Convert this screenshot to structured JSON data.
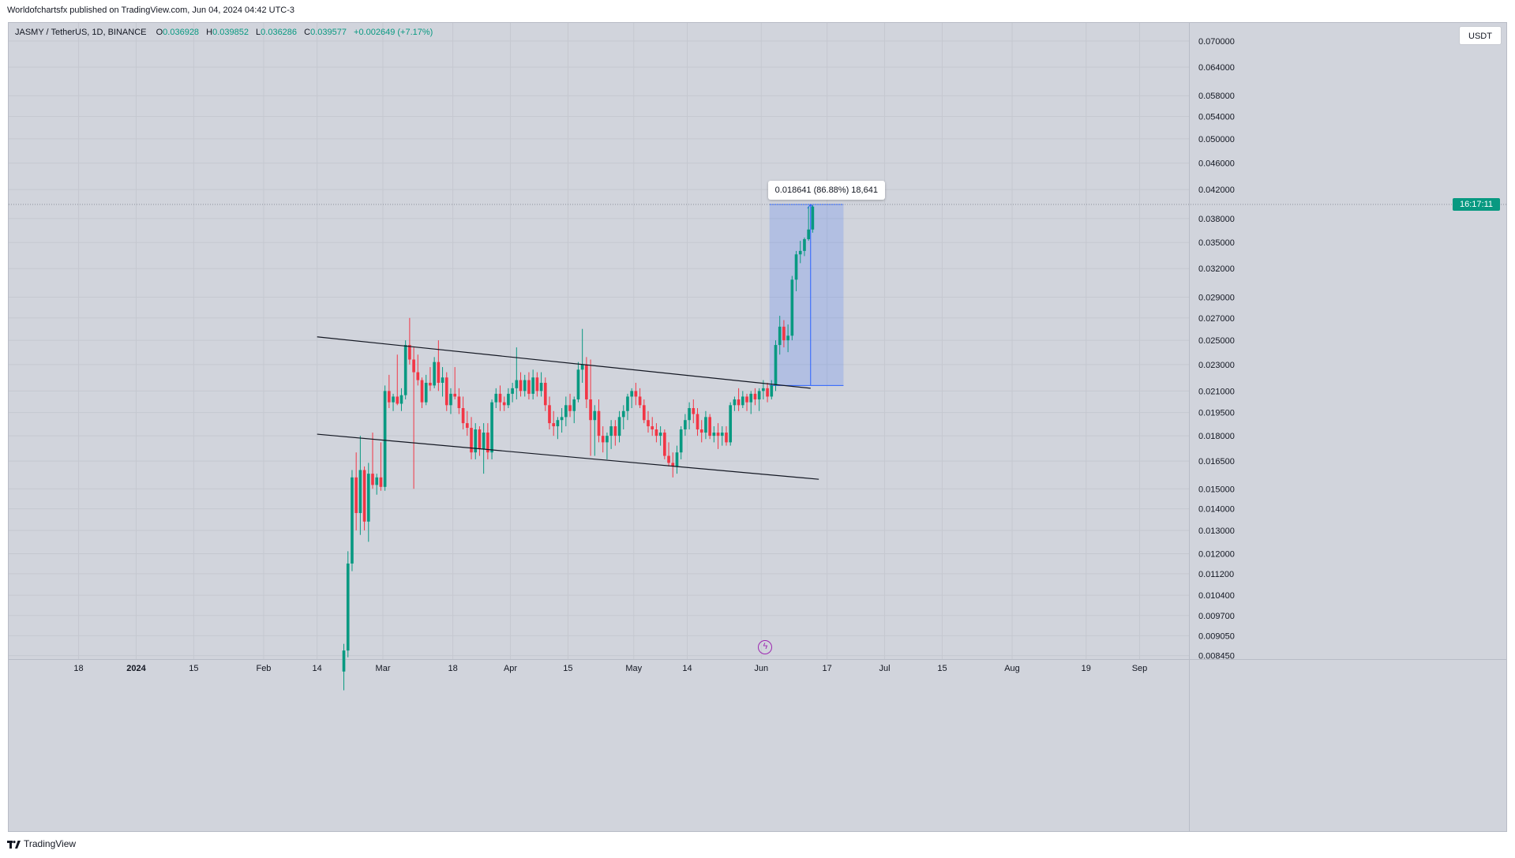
{
  "header": {
    "publish_line": "Worldofchartsfx published on TradingView.com, Jun 04, 2024 04:42 UTC-3"
  },
  "legend": {
    "symbol": "JASMY / TetherUS, 1D, BINANCE",
    "o_label": "O",
    "o": "0.036928",
    "h_label": "H",
    "h": "0.039852",
    "l_label": "L",
    "l": "0.036286",
    "c_label": "C",
    "c": "0.039577",
    "change": "+0.002649 (+7.17%)"
  },
  "currency": "USDT",
  "price_countdown": "16:17:11",
  "measure_label": "0.018641 (86.88%) 18,641",
  "footer": {
    "brand": "TradingView"
  },
  "colors": {
    "bull": "#089981",
    "bear": "#f23645",
    "background": "#d1d4dc",
    "measure_fill": "rgba(41,98,255,0.18)",
    "measure_line": "#2962ff",
    "trendline": "#131722",
    "countdown_bg": "#089981",
    "replay_icon": "#9c27b0"
  },
  "chart_data": {
    "type": "candlestick",
    "title": "JASMY / TetherUS, 1D, BINANCE",
    "y_scale": "log",
    "ylim": [
      0.00835,
      0.0745
    ],
    "xlim": [
      "2023-12-01",
      "2024-09-13"
    ],
    "y_ticks": [
      "0.070000",
      "0.064000",
      "0.058000",
      "0.054000",
      "0.050000",
      "0.046000",
      "0.042000",
      "0.038000",
      "0.035000",
      "0.032000",
      "0.029000",
      "0.027000",
      "0.025000",
      "0.023000",
      "0.021000",
      "0.019500",
      "0.018000",
      "0.016500",
      "0.015000",
      "0.014000",
      "0.013000",
      "0.012000",
      "0.011200",
      "0.010400",
      "0.009700",
      "0.009050",
      "0.008450"
    ],
    "x_ticks": [
      {
        "label": "18",
        "date": "2023-12-18"
      },
      {
        "label": "2024",
        "date": "2024-01-01",
        "bold": true
      },
      {
        "label": "15",
        "date": "2024-01-15"
      },
      {
        "label": "Feb",
        "date": "2024-02-01"
      },
      {
        "label": "14",
        "date": "2024-02-14"
      },
      {
        "label": "Mar",
        "date": "2024-03-01"
      },
      {
        "label": "18",
        "date": "2024-03-18"
      },
      {
        "label": "Apr",
        "date": "2024-04-01"
      },
      {
        "label": "15",
        "date": "2024-04-15"
      },
      {
        "label": "May",
        "date": "2024-05-01"
      },
      {
        "label": "14",
        "date": "2024-05-14"
      },
      {
        "label": "Jun",
        "date": "2024-06-01"
      },
      {
        "label": "17",
        "date": "2024-06-17"
      },
      {
        "label": "Jul",
        "date": "2024-07-01"
      },
      {
        "label": "15",
        "date": "2024-07-15"
      },
      {
        "label": "Aug",
        "date": "2024-08-01"
      },
      {
        "label": "19",
        "date": "2024-08-19"
      },
      {
        "label": "Sep",
        "date": "2024-09-01"
      }
    ],
    "candles": [
      {
        "date": "2024-02-20",
        "o": 0.008,
        "h": 0.0088,
        "l": 0.0075,
        "c": 0.0086
      },
      {
        "date": "2024-02-21",
        "o": 0.0086,
        "h": 0.0121,
        "l": 0.0084,
        "c": 0.0116
      },
      {
        "date": "2024-02-22",
        "o": 0.0116,
        "h": 0.016,
        "l": 0.0113,
        "c": 0.0156
      },
      {
        "date": "2024-02-23",
        "o": 0.0156,
        "h": 0.017,
        "l": 0.013,
        "c": 0.0138
      },
      {
        "date": "2024-02-24",
        "o": 0.0138,
        "h": 0.018,
        "l": 0.0128,
        "c": 0.016
      },
      {
        "date": "2024-02-25",
        "o": 0.016,
        "h": 0.0162,
        "l": 0.013,
        "c": 0.0134
      },
      {
        "date": "2024-02-26",
        "o": 0.0134,
        "h": 0.0164,
        "l": 0.0125,
        "c": 0.0158
      },
      {
        "date": "2024-02-27",
        "o": 0.0158,
        "h": 0.0182,
        "l": 0.015,
        "c": 0.0152
      },
      {
        "date": "2024-02-28",
        "o": 0.0152,
        "h": 0.0158,
        "l": 0.0147,
        "c": 0.0156
      },
      {
        "date": "2024-02-29",
        "o": 0.0156,
        "h": 0.0176,
        "l": 0.0149,
        "c": 0.0151
      },
      {
        "date": "2024-03-01",
        "o": 0.0151,
        "h": 0.0214,
        "l": 0.0149,
        "c": 0.021
      },
      {
        "date": "2024-03-02",
        "o": 0.021,
        "h": 0.0222,
        "l": 0.0198,
        "c": 0.0202
      },
      {
        "date": "2024-03-03",
        "o": 0.0202,
        "h": 0.0208,
        "l": 0.0196,
        "c": 0.0206
      },
      {
        "date": "2024-03-04",
        "o": 0.0206,
        "h": 0.0238,
        "l": 0.02,
        "c": 0.0201
      },
      {
        "date": "2024-03-05",
        "o": 0.0201,
        "h": 0.0212,
        "l": 0.0196,
        "c": 0.0207
      },
      {
        "date": "2024-03-06",
        "o": 0.0207,
        "h": 0.025,
        "l": 0.0204,
        "c": 0.0246
      },
      {
        "date": "2024-03-07",
        "o": 0.0246,
        "h": 0.027,
        "l": 0.023,
        "c": 0.0234
      },
      {
        "date": "2024-03-08",
        "o": 0.0234,
        "h": 0.0244,
        "l": 0.015,
        "c": 0.0224
      },
      {
        "date": "2024-03-09",
        "o": 0.0224,
        "h": 0.0238,
        "l": 0.0214,
        "c": 0.0218
      },
      {
        "date": "2024-03-10",
        "o": 0.0218,
        "h": 0.022,
        "l": 0.0198,
        "c": 0.0202
      },
      {
        "date": "2024-03-11",
        "o": 0.0202,
        "h": 0.0222,
        "l": 0.02,
        "c": 0.0216
      },
      {
        "date": "2024-03-12",
        "o": 0.0216,
        "h": 0.0228,
        "l": 0.021,
        "c": 0.0214
      },
      {
        "date": "2024-03-13",
        "o": 0.0214,
        "h": 0.0236,
        "l": 0.0212,
        "c": 0.0232
      },
      {
        "date": "2024-03-14",
        "o": 0.0232,
        "h": 0.025,
        "l": 0.021,
        "c": 0.0216
      },
      {
        "date": "2024-03-15",
        "o": 0.0216,
        "h": 0.0228,
        "l": 0.0206,
        "c": 0.022
      },
      {
        "date": "2024-03-16",
        "o": 0.022,
        "h": 0.0224,
        "l": 0.0196,
        "c": 0.02
      },
      {
        "date": "2024-03-17",
        "o": 0.02,
        "h": 0.0212,
        "l": 0.0194,
        "c": 0.0208
      },
      {
        "date": "2024-03-18",
        "o": 0.0208,
        "h": 0.0228,
        "l": 0.0204,
        "c": 0.0206
      },
      {
        "date": "2024-03-19",
        "o": 0.0206,
        "h": 0.0212,
        "l": 0.0194,
        "c": 0.0198
      },
      {
        "date": "2024-03-20",
        "o": 0.0198,
        "h": 0.0206,
        "l": 0.0184,
        "c": 0.0188
      },
      {
        "date": "2024-03-21",
        "o": 0.0188,
        "h": 0.0196,
        "l": 0.018,
        "c": 0.0185
      },
      {
        "date": "2024-03-22",
        "o": 0.0185,
        "h": 0.0192,
        "l": 0.0166,
        "c": 0.017
      },
      {
        "date": "2024-03-23",
        "o": 0.017,
        "h": 0.0188,
        "l": 0.0166,
        "c": 0.0184
      },
      {
        "date": "2024-03-24",
        "o": 0.0184,
        "h": 0.0186,
        "l": 0.0168,
        "c": 0.0172
      },
      {
        "date": "2024-03-25",
        "o": 0.0172,
        "h": 0.0188,
        "l": 0.0158,
        "c": 0.0182
      },
      {
        "date": "2024-03-26",
        "o": 0.0182,
        "h": 0.0188,
        "l": 0.0166,
        "c": 0.017
      },
      {
        "date": "2024-03-27",
        "o": 0.017,
        "h": 0.0204,
        "l": 0.0166,
        "c": 0.0202
      },
      {
        "date": "2024-03-28",
        "o": 0.0202,
        "h": 0.0212,
        "l": 0.0198,
        "c": 0.0208
      },
      {
        "date": "2024-03-29",
        "o": 0.0208,
        "h": 0.0214,
        "l": 0.0196,
        "c": 0.0202
      },
      {
        "date": "2024-03-30",
        "o": 0.0202,
        "h": 0.0206,
        "l": 0.0196,
        "c": 0.02
      },
      {
        "date": "2024-03-31",
        "o": 0.02,
        "h": 0.0212,
        "l": 0.0198,
        "c": 0.0208
      },
      {
        "date": "2024-04-01",
        "o": 0.0208,
        "h": 0.0216,
        "l": 0.0202,
        "c": 0.0212
      },
      {
        "date": "2024-04-02",
        "o": 0.0212,
        "h": 0.0244,
        "l": 0.0204,
        "c": 0.0218
      },
      {
        "date": "2024-04-03",
        "o": 0.0218,
        "h": 0.0224,
        "l": 0.0206,
        "c": 0.021
      },
      {
        "date": "2024-04-04",
        "o": 0.021,
        "h": 0.0222,
        "l": 0.0206,
        "c": 0.0218
      },
      {
        "date": "2024-04-05",
        "o": 0.0218,
        "h": 0.0224,
        "l": 0.0204,
        "c": 0.0208
      },
      {
        "date": "2024-04-06",
        "o": 0.0208,
        "h": 0.0226,
        "l": 0.0204,
        "c": 0.022
      },
      {
        "date": "2024-04-07",
        "o": 0.022,
        "h": 0.0224,
        "l": 0.0206,
        "c": 0.021
      },
      {
        "date": "2024-04-08",
        "o": 0.021,
        "h": 0.0224,
        "l": 0.0206,
        "c": 0.0216
      },
      {
        "date": "2024-04-09",
        "o": 0.0216,
        "h": 0.022,
        "l": 0.0196,
        "c": 0.02
      },
      {
        "date": "2024-04-10",
        "o": 0.02,
        "h": 0.0206,
        "l": 0.0184,
        "c": 0.0188
      },
      {
        "date": "2024-04-11",
        "o": 0.0188,
        "h": 0.0196,
        "l": 0.018,
        "c": 0.0186
      },
      {
        "date": "2024-04-12",
        "o": 0.0186,
        "h": 0.0192,
        "l": 0.0178,
        "c": 0.019
      },
      {
        "date": "2024-04-13",
        "o": 0.019,
        "h": 0.0198,
        "l": 0.0182,
        "c": 0.0192
      },
      {
        "date": "2024-04-14",
        "o": 0.0192,
        "h": 0.0206,
        "l": 0.0186,
        "c": 0.02
      },
      {
        "date": "2024-04-15",
        "o": 0.02,
        "h": 0.0208,
        "l": 0.0192,
        "c": 0.0196
      },
      {
        "date": "2024-04-16",
        "o": 0.0196,
        "h": 0.0206,
        "l": 0.0188,
        "c": 0.0204
      },
      {
        "date": "2024-04-17",
        "o": 0.0204,
        "h": 0.0232,
        "l": 0.0202,
        "c": 0.0226
      },
      {
        "date": "2024-04-18",
        "o": 0.0226,
        "h": 0.026,
        "l": 0.0216,
        "c": 0.023
      },
      {
        "date": "2024-04-19",
        "o": 0.023,
        "h": 0.0236,
        "l": 0.0198,
        "c": 0.0204
      },
      {
        "date": "2024-04-20",
        "o": 0.0204,
        "h": 0.0234,
        "l": 0.0168,
        "c": 0.019
      },
      {
        "date": "2024-04-21",
        "o": 0.019,
        "h": 0.02,
        "l": 0.0168,
        "c": 0.0196
      },
      {
        "date": "2024-04-22",
        "o": 0.0196,
        "h": 0.0204,
        "l": 0.0176,
        "c": 0.018
      },
      {
        "date": "2024-04-23",
        "o": 0.018,
        "h": 0.0186,
        "l": 0.017,
        "c": 0.0176
      },
      {
        "date": "2024-04-24",
        "o": 0.0176,
        "h": 0.0182,
        "l": 0.0166,
        "c": 0.018
      },
      {
        "date": "2024-04-25",
        "o": 0.018,
        "h": 0.019,
        "l": 0.0172,
        "c": 0.0186
      },
      {
        "date": "2024-04-26",
        "o": 0.0186,
        "h": 0.019,
        "l": 0.0174,
        "c": 0.018
      },
      {
        "date": "2024-04-27",
        "o": 0.018,
        "h": 0.0196,
        "l": 0.0176,
        "c": 0.0192
      },
      {
        "date": "2024-04-28",
        "o": 0.0192,
        "h": 0.02,
        "l": 0.0184,
        "c": 0.0196
      },
      {
        "date": "2024-04-29",
        "o": 0.0196,
        "h": 0.0208,
        "l": 0.019,
        "c": 0.0206
      },
      {
        "date": "2024-04-30",
        "o": 0.0206,
        "h": 0.0212,
        "l": 0.0198,
        "c": 0.021
      },
      {
        "date": "2024-05-01",
        "o": 0.021,
        "h": 0.0216,
        "l": 0.02,
        "c": 0.0206
      },
      {
        "date": "2024-05-02",
        "o": 0.0206,
        "h": 0.0212,
        "l": 0.0198,
        "c": 0.02
      },
      {
        "date": "2024-05-03",
        "o": 0.02,
        "h": 0.0204,
        "l": 0.0188,
        "c": 0.019
      },
      {
        "date": "2024-05-04",
        "o": 0.019,
        "h": 0.0196,
        "l": 0.0182,
        "c": 0.0186
      },
      {
        "date": "2024-05-05",
        "o": 0.0186,
        "h": 0.0192,
        "l": 0.018,
        "c": 0.0184
      },
      {
        "date": "2024-05-06",
        "o": 0.0184,
        "h": 0.0188,
        "l": 0.0176,
        "c": 0.018
      },
      {
        "date": "2024-05-07",
        "o": 0.018,
        "h": 0.0186,
        "l": 0.0174,
        "c": 0.0182
      },
      {
        "date": "2024-05-08",
        "o": 0.0182,
        "h": 0.0184,
        "l": 0.0166,
        "c": 0.0168
      },
      {
        "date": "2024-05-09",
        "o": 0.0168,
        "h": 0.0176,
        "l": 0.0162,
        "c": 0.0164
      },
      {
        "date": "2024-05-10",
        "o": 0.0164,
        "h": 0.017,
        "l": 0.0156,
        "c": 0.0162
      },
      {
        "date": "2024-05-11",
        "o": 0.0162,
        "h": 0.0174,
        "l": 0.0158,
        "c": 0.017
      },
      {
        "date": "2024-05-12",
        "o": 0.017,
        "h": 0.0186,
        "l": 0.0166,
        "c": 0.0184
      },
      {
        "date": "2024-05-13",
        "o": 0.0184,
        "h": 0.0194,
        "l": 0.018,
        "c": 0.019
      },
      {
        "date": "2024-05-14",
        "o": 0.019,
        "h": 0.0202,
        "l": 0.0184,
        "c": 0.0198
      },
      {
        "date": "2024-05-15",
        "o": 0.0198,
        "h": 0.0204,
        "l": 0.0188,
        "c": 0.0194
      },
      {
        "date": "2024-05-16",
        "o": 0.0194,
        "h": 0.0198,
        "l": 0.018,
        "c": 0.0184
      },
      {
        "date": "2024-05-17",
        "o": 0.0184,
        "h": 0.019,
        "l": 0.0176,
        "c": 0.0182
      },
      {
        "date": "2024-05-18",
        "o": 0.0182,
        "h": 0.0196,
        "l": 0.0178,
        "c": 0.0192
      },
      {
        "date": "2024-05-19",
        "o": 0.0192,
        "h": 0.0194,
        "l": 0.0178,
        "c": 0.018
      },
      {
        "date": "2024-05-20",
        "o": 0.018,
        "h": 0.0186,
        "l": 0.0176,
        "c": 0.0182
      },
      {
        "date": "2024-05-21",
        "o": 0.0182,
        "h": 0.0188,
        "l": 0.0172,
        "c": 0.018
      },
      {
        "date": "2024-05-22",
        "o": 0.018,
        "h": 0.0186,
        "l": 0.0174,
        "c": 0.0182
      },
      {
        "date": "2024-05-23",
        "o": 0.0182,
        "h": 0.0186,
        "l": 0.0174,
        "c": 0.0176
      },
      {
        "date": "2024-05-24",
        "o": 0.0176,
        "h": 0.0202,
        "l": 0.0174,
        "c": 0.02
      },
      {
        "date": "2024-05-25",
        "o": 0.02,
        "h": 0.0206,
        "l": 0.0196,
        "c": 0.0204
      },
      {
        "date": "2024-05-26",
        "o": 0.0204,
        "h": 0.0212,
        "l": 0.0196,
        "c": 0.02
      },
      {
        "date": "2024-05-27",
        "o": 0.02,
        "h": 0.021,
        "l": 0.0198,
        "c": 0.0206
      },
      {
        "date": "2024-05-28",
        "o": 0.0206,
        "h": 0.0208,
        "l": 0.0196,
        "c": 0.0202
      },
      {
        "date": "2024-05-29",
        "o": 0.0202,
        "h": 0.021,
        "l": 0.0194,
        "c": 0.0208
      },
      {
        "date": "2024-05-30",
        "o": 0.0208,
        "h": 0.0212,
        "l": 0.02,
        "c": 0.0204
      },
      {
        "date": "2024-05-31",
        "o": 0.0204,
        "h": 0.0212,
        "l": 0.0196,
        "c": 0.021
      },
      {
        "date": "2024-06-01",
        "o": 0.021,
        "h": 0.0218,
        "l": 0.0204,
        "c": 0.0212
      },
      {
        "date": "2024-06-02",
        "o": 0.0212,
        "h": 0.0216,
        "l": 0.0202,
        "c": 0.0206
      },
      {
        "date": "2024-06-03",
        "o": 0.0206,
        "h": 0.0218,
        "l": 0.0204,
        "c": 0.0214
      },
      {
        "date": "2024-06-04",
        "o": 0.0214,
        "h": 0.025,
        "l": 0.021,
        "c": 0.0246
      },
      {
        "date": "2024-06-05",
        "o": 0.0246,
        "h": 0.0272,
        "l": 0.0238,
        "c": 0.0262
      },
      {
        "date": "2024-06-06",
        "o": 0.0262,
        "h": 0.0268,
        "l": 0.0244,
        "c": 0.025
      },
      {
        "date": "2024-06-07",
        "o": 0.025,
        "h": 0.0264,
        "l": 0.024,
        "c": 0.0254
      },
      {
        "date": "2024-06-08",
        "o": 0.0254,
        "h": 0.0312,
        "l": 0.025,
        "c": 0.0308
      },
      {
        "date": "2024-06-09",
        "o": 0.0308,
        "h": 0.034,
        "l": 0.0296,
        "c": 0.0336
      },
      {
        "date": "2024-06-10",
        "o": 0.0336,
        "h": 0.0352,
        "l": 0.0326,
        "c": 0.034
      },
      {
        "date": "2024-06-11",
        "o": 0.034,
        "h": 0.0356,
        "l": 0.0334,
        "c": 0.0354
      },
      {
        "date": "2024-06-12",
        "o": 0.0354,
        "h": 0.0396,
        "l": 0.0352,
        "c": 0.0366
      },
      {
        "date": "2024-06-13",
        "o": 0.0366,
        "h": 0.0398,
        "l": 0.0362,
        "c": 0.0396
      }
    ],
    "trendlines": [
      {
        "name": "upper-channel",
        "p1": {
          "date": "2024-02-14",
          "y": 0.0253
        },
        "p2": {
          "date": "2024-06-13",
          "y": 0.0212
        }
      },
      {
        "name": "lower-channel",
        "p1": {
          "date": "2024-02-14",
          "y": 0.0181
        },
        "p2": {
          "date": "2024-06-15",
          "y": 0.0155
        }
      }
    ],
    "measure": {
      "start": "2024-06-03",
      "end": "2024-06-21",
      "low": 0.0214,
      "high": 0.0399,
      "arrow_date": "2024-06-13"
    },
    "last_price_line": 0.0399,
    "annotations": [
      "0.018641 (86.88%) 18,641"
    ]
  }
}
